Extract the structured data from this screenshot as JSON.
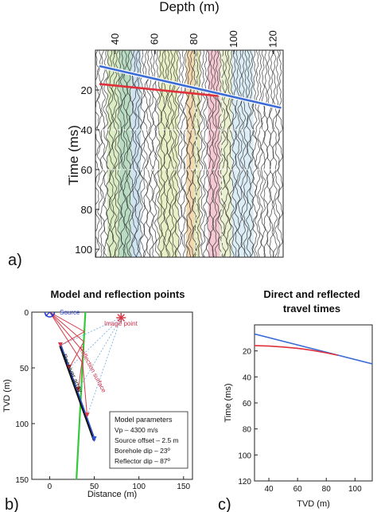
{
  "panels": {
    "a": {
      "label": "a)"
    },
    "b": {
      "label": "b)"
    },
    "c": {
      "label": "c)"
    }
  },
  "chart_data": [
    {
      "type": "heatmap",
      "panel": "a",
      "title": "",
      "xlabel": "Depth (m)",
      "ylabel": "Time (ms)",
      "x_ticks": [
        40,
        60,
        80,
        100,
        120
      ],
      "y_ticks": [
        20,
        40,
        60,
        80,
        100
      ],
      "xlim": [
        30,
        125
      ],
      "ylim": [
        104,
        0
      ],
      "x_axis_position": "top",
      "colored_bands": [
        {
          "x": [
            36,
            42
          ],
          "color": "#dcecc4"
        },
        {
          "x": [
            42,
            48
          ],
          "color": "#b9dcc3"
        },
        {
          "x": [
            48,
            53
          ],
          "color": "#cfe3f0"
        },
        {
          "x": [
            62,
            72
          ],
          "color": "#e9f0c6"
        },
        {
          "x": [
            76,
            80
          ],
          "color": "#f3d9b2"
        },
        {
          "x": [
            80,
            83
          ],
          "color": "#e3e6b9"
        },
        {
          "x": [
            87,
            93
          ],
          "color": "#f4c9d4"
        },
        {
          "x": [
            93,
            99
          ],
          "color": "#eaf0d0"
        },
        {
          "x": [
            99,
            110
          ],
          "color": "#dcedf6"
        }
      ],
      "series": [
        {
          "name": "direct",
          "color": "#3b6bd6",
          "x": [
            32,
            124
          ],
          "values": [
            8,
            29
          ]
        },
        {
          "name": "reflected",
          "color": "#e0303a",
          "x": [
            32,
            92
          ],
          "values": [
            17,
            23
          ]
        }
      ]
    },
    {
      "type": "scatter",
      "panel": "b",
      "title": "Model and reflection points",
      "xlabel": "Distance (m)",
      "ylabel": "TVD (m)",
      "x_ticks": [
        0,
        50,
        100,
        150
      ],
      "y_ticks": [
        0,
        50,
        100,
        150
      ],
      "xlim": [
        -20,
        160
      ],
      "ylim": [
        150,
        0
      ],
      "source": {
        "label": "Source",
        "x": 0,
        "y": 0
      },
      "image_point": {
        "label": "Image point",
        "x": 80,
        "y": 5
      },
      "reflection_surface_label": "Reflection surface",
      "receiver_array_label": "Receiver array",
      "receiver_array": {
        "x": [
          12,
          50
        ],
        "y": [
          30,
          115
        ]
      },
      "reflector": {
        "x": [
          40,
          30
        ],
        "y": [
          0,
          150
        ]
      },
      "receivers_hit": [
        {
          "x": 12,
          "y": 30
        },
        {
          "x": 22,
          "y": 50
        },
        {
          "x": 32,
          "y": 70
        },
        {
          "x": 42,
          "y": 93
        }
      ],
      "legend": {
        "title": "Model parameters",
        "lines": [
          "Vp – 4300 m/s",
          "Source offset – 2.5 m",
          "Borehole dip – 23º",
          "Reflector dip – 87º"
        ]
      }
    },
    {
      "type": "line",
      "panel": "c",
      "title_lines": [
        "Direct and reflected",
        "travel times"
      ],
      "xlabel": "TVD (m)",
      "ylabel": "Time (ms)",
      "x_ticks": [
        40,
        60,
        80,
        100
      ],
      "y_ticks": [
        20,
        40,
        60,
        80,
        100,
        120
      ],
      "xlim": [
        30,
        112
      ],
      "ylim": [
        120,
        0
      ],
      "series": [
        {
          "name": "direct",
          "color": "#3b6bd6",
          "x": [
            30,
            112
          ],
          "values": [
            7,
            30
          ]
        },
        {
          "name": "reflected",
          "color": "#e0303a",
          "x": [
            30,
            40,
            50,
            60,
            70,
            80,
            88
          ],
          "values": [
            16,
            16.3,
            17,
            18,
            19.5,
            21.5,
            23.3
          ]
        }
      ]
    }
  ]
}
